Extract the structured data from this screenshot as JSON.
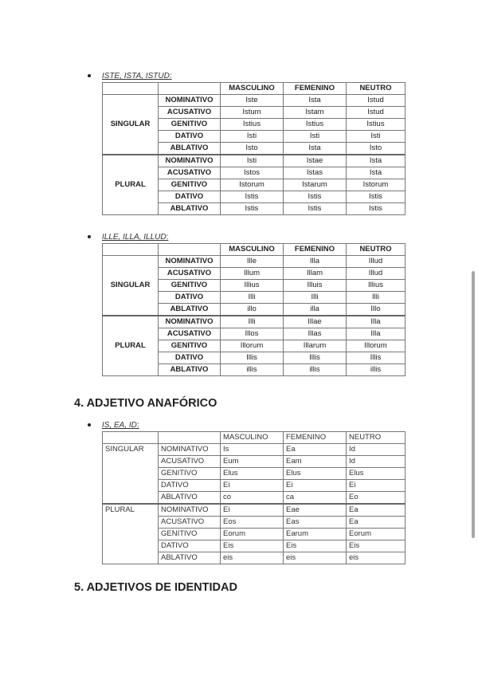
{
  "columns": [
    "",
    "",
    "MASCULINO",
    "FEMENINO",
    "NEUTRO"
  ],
  "sections": [
    {
      "bullet": "ISTE, ISTA, ISTUD",
      "groups": [
        {
          "number": "SINGULAR",
          "rows": [
            [
              "NOMINATIVO",
              "Iste",
              "Ista",
              "Istud"
            ],
            [
              "ACUSATIVO",
              "Istum",
              "Istam",
              "Istud"
            ],
            [
              "GENITIVO",
              "Istius",
              "Istius",
              "Istius"
            ],
            [
              "DATIVO",
              "Isti",
              "Isti",
              "Isti"
            ],
            [
              "ABLATIVO",
              "Isto",
              "Ista",
              "Isto"
            ]
          ]
        },
        {
          "number": "PLURAL",
          "rows": [
            [
              "NOMINATIVO",
              "Isti",
              "Istae",
              "Ista"
            ],
            [
              "ACUSATIVO",
              "Istos",
              "Istas",
              "Ista"
            ],
            [
              "GENITIVO",
              "Istorum",
              "Istarum",
              "Istorum"
            ],
            [
              "DATIVO",
              "Istis",
              "Istis",
              "Istis"
            ],
            [
              "ABLATIVO",
              "Istis",
              "Istis",
              "Istis"
            ]
          ]
        }
      ]
    },
    {
      "bullet": "ILLE, ILLA, ILLUD",
      "groups": [
        {
          "number": "SINGULAR",
          "rows": [
            [
              "NOMINATIVO",
              "Ille",
              "Illa",
              "Illud"
            ],
            [
              "ACUSATIVO",
              "Illum",
              "Illam",
              "Illud"
            ],
            [
              "GENITIVO",
              "Illius",
              "Illuis",
              "Illius"
            ],
            [
              "DATIVO",
              "Illi",
              "Illi",
              "Illi"
            ],
            [
              "ABLATIVO",
              "illo",
              "illa",
              "Illo"
            ]
          ]
        },
        {
          "number": "PLURAL",
          "rows": [
            [
              "NOMINATIVO",
              "Illi",
              "Illae",
              "Illa"
            ],
            [
              "ACUSATIVO",
              "Illos",
              "Illas",
              "Illa"
            ],
            [
              "GENITIVO",
              "Illorum",
              "Illarum",
              "Illorum"
            ],
            [
              "DATIVO",
              "Illis",
              "Illis",
              "Illis"
            ],
            [
              "ABLATIVO",
              "illis",
              "illis",
              "illis"
            ]
          ]
        }
      ]
    },
    {
      "heading": "4. ADJETIVO ANAFÓRICO",
      "bullet": "IS, EA, ID",
      "groups": [
        {
          "number": "SINGULAR",
          "rows": [
            [
              "NOMINATIVO",
              "Is",
              "Ea",
              "Id"
            ],
            [
              "ACUSATIVO",
              "Eum",
              "Eam",
              "Id"
            ],
            [
              "GENITIVO",
              "Elus",
              "Elus",
              "Elus"
            ],
            [
              "DATIVO",
              "Ei",
              "Ei",
              "Ei"
            ],
            [
              "ABLATIVO",
              "co",
              "ca",
              "Eo"
            ]
          ]
        },
        {
          "number": "PLURAL",
          "rows": [
            [
              "NOMINATIVO",
              "Ei",
              "Eae",
              "Ea"
            ],
            [
              "ACUSATIVO",
              "Eos",
              "Eas",
              "Ea"
            ],
            [
              "GENITIVO",
              "Eorum",
              "Earum",
              "Eorum"
            ],
            [
              "DATIVO",
              "Eis",
              "Eis",
              "Eis"
            ],
            [
              "ABLATIVO",
              "eis",
              "eis",
              "eis"
            ]
          ]
        }
      ]
    }
  ],
  "next_heading": "5. ADJETIVOS DE IDENTIDAD",
  "colon": ":"
}
